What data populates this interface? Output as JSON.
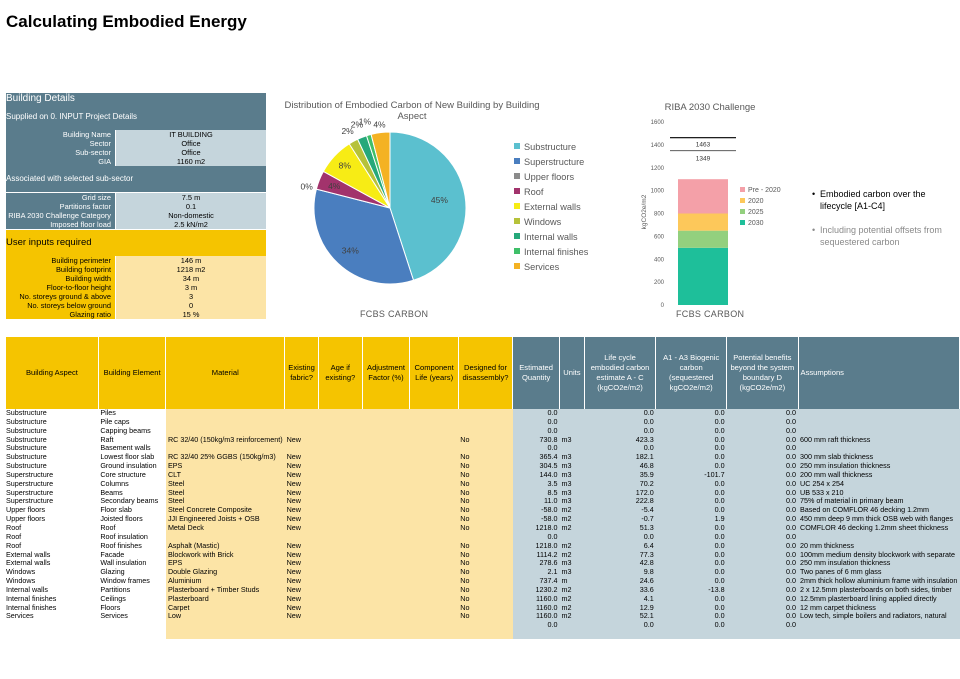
{
  "page": {
    "title": "Calculating Embodied Energy"
  },
  "building_details": {
    "header": "Building Details",
    "section1": "Supplied on 0. INPUT Project Details",
    "project_rows": [
      {
        "label": "Building Name",
        "value": "IT BUILDING"
      },
      {
        "label": "Sector",
        "value": "Office"
      },
      {
        "label": "Sub-sector",
        "value": "Office"
      },
      {
        "label": "GIA",
        "value": "1160 m2"
      }
    ],
    "section2": "Associated with selected sub-sector",
    "subsector_rows": [
      {
        "label": "Grid size",
        "value": "7.5 m"
      },
      {
        "label": "Partitions factor",
        "value": "0.1"
      },
      {
        "label": "RIBA 2030 Challenge Category",
        "value": "Non-domestic"
      },
      {
        "label": "Imposed floor load",
        "value": "2.5 kN/m2"
      }
    ],
    "section3": "User inputs required",
    "user_rows": [
      {
        "label": "Building perimeter",
        "value": "146 m"
      },
      {
        "label": "Building footprint",
        "value": "1218 m2"
      },
      {
        "label": "Building width",
        "value": "34 m"
      },
      {
        "label": "Floor-to-floor height",
        "value": "3 m"
      },
      {
        "label": "No. storeys ground & above",
        "value": "3"
      },
      {
        "label": "No. storeys below ground",
        "value": "0"
      },
      {
        "label": "Glazing ratio",
        "value": "15 %"
      }
    ]
  },
  "chart_data": [
    {
      "type": "pie",
      "title": "Distribution of Embodied Carbon of New Building by Building Aspect",
      "categories": [
        "Substructure",
        "Superstructure",
        "Upper floors",
        "Roof",
        "External walls",
        "Windows",
        "Internal walls",
        "Internal finishes",
        "Services"
      ],
      "values": [
        45,
        34,
        0,
        4,
        8,
        2,
        2,
        1,
        4
      ],
      "labels": [
        "45%",
        "34%",
        "0%",
        "4%",
        "8%",
        "2%",
        "2%",
        "1%",
        "4%"
      ],
      "colors": [
        "#5bc0cf",
        "#4a7ebf",
        "#8b8b8b",
        "#a2336c",
        "#f7ec15",
        "#b6c23a",
        "#26a87a",
        "#3fbf69",
        "#f4b223"
      ],
      "legend_position": "right",
      "brand": "FCBS CARBON"
    },
    {
      "type": "bar",
      "title": "RIBA 2030 Challenge",
      "ylabel": "kgCO2e/m2",
      "ylim": [
        0,
        1600
      ],
      "yticks": [
        0,
        200,
        400,
        600,
        800,
        1000,
        1200,
        1400,
        1600
      ],
      "stack": [
        {
          "name": "2030",
          "from": 0,
          "to": 500,
          "color": "#1ebf9a"
        },
        {
          "name": "2025",
          "from": 500,
          "to": 650,
          "color": "#93d07e"
        },
        {
          "name": "2020",
          "from": 650,
          "to": 800,
          "color": "#fdc85a"
        },
        {
          "name": "Pre - 2020",
          "from": 800,
          "to": 1100,
          "color": "#f4a0a8"
        }
      ],
      "markers": [
        {
          "value": 1463,
          "label": "1463"
        },
        {
          "value": 1349,
          "label": "1349"
        }
      ],
      "legend": [
        "Pre - 2020",
        "2020",
        "2025",
        "2030"
      ],
      "brand": "FCBS CARBON"
    }
  ],
  "notes": {
    "bullet1": "Embodied carbon over the lifecycle [A1-C4]",
    "bullet2": "Including potential offsets from sequestered carbon"
  },
  "table": {
    "headers": [
      "Building Aspect",
      "Building Element",
      "Material",
      "Existing fabric?",
      "Age if existing?",
      "Adjustment Factor (%)",
      "Component Life (years)",
      "Designed for disassembly?",
      "Estimated Quantity",
      "Units",
      "Life cycle embodied carbon estimate A - C (kgCO2e/m2)",
      "A1 - A3 Biogenic carbon (sequestered kgCO2e/m2)",
      "Potential benefits beyond the system boundary D (kgCO2e/m2)",
      "Assumptions"
    ],
    "rows": [
      [
        "Substructure",
        "Piles",
        "",
        "",
        "",
        "",
        "",
        "",
        "0.0",
        "",
        "0.0",
        "0.0",
        "0.0",
        ""
      ],
      [
        "Substructure",
        "Pile caps",
        "",
        "",
        "",
        "",
        "",
        "",
        "0.0",
        "",
        "0.0",
        "0.0",
        "0.0",
        ""
      ],
      [
        "Substructure",
        "Capping beams",
        "",
        "",
        "",
        "",
        "",
        "",
        "0.0",
        "",
        "0.0",
        "0.0",
        "0.0",
        ""
      ],
      [
        "Substructure",
        "Raft",
        "RC 32/40 (150kg/m3 reinforcement)",
        "New",
        "",
        "",
        "",
        "No",
        "730.8",
        "m3",
        "423.3",
        "0.0",
        "0.0",
        "600 mm raft thickness"
      ],
      [
        "Substructure",
        "Basement walls",
        "",
        "",
        "",
        "",
        "",
        "",
        "0.0",
        "",
        "0.0",
        "0.0",
        "0.0",
        ""
      ],
      [
        "Substructure",
        "Lowest floor slab",
        "RC 32/40 25% GGBS (150kg/m3)",
        "New",
        "",
        "",
        "",
        "No",
        "365.4",
        "m3",
        "182.1",
        "0.0",
        "0.0",
        "300 mm slab thickness"
      ],
      [
        "Substructure",
        "Ground insulation",
        "EPS",
        "New",
        "",
        "",
        "",
        "No",
        "304.5",
        "m3",
        "46.8",
        "0.0",
        "0.0",
        "250 mm insulation thickness"
      ],
      [
        "Superstructure",
        "Core structure",
        "CLT",
        "New",
        "",
        "",
        "",
        "No",
        "144.0",
        "m3",
        "35.9",
        "-101.7",
        "0.0",
        "200 mm wall thickness"
      ],
      [
        "Superstructure",
        "Columns",
        "Steel",
        "New",
        "",
        "",
        "",
        "No",
        "3.5",
        "m3",
        "70.2",
        "0.0",
        "0.0",
        "UC 254 x 254"
      ],
      [
        "Superstructure",
        "Beams",
        "Steel",
        "New",
        "",
        "",
        "",
        "No",
        "8.5",
        "m3",
        "172.0",
        "0.0",
        "0.0",
        "UB 533 x 210"
      ],
      [
        "Superstructure",
        "Secondary beams",
        "Steel",
        "New",
        "",
        "",
        "",
        "No",
        "11.0",
        "m3",
        "222.8",
        "0.0",
        "0.0",
        "75% of material in primary beam"
      ],
      [
        "Upper floors",
        "Floor slab",
        "Steel Concrete Composite",
        "New",
        "",
        "",
        "",
        "No",
        "-58.0",
        "m2",
        "-5.4",
        "0.0",
        "0.0",
        "Based on COMFLOR 46 decking 1.2mm"
      ],
      [
        "Upper floors",
        "Joisted floors",
        "JJI Engineered Joists + OSB",
        "New",
        "",
        "",
        "",
        "No",
        "-58.0",
        "m2",
        "-0.7",
        "1.9",
        "0.0",
        "450 mm deep 9 mm thick OSB web with flanges"
      ],
      [
        "Roof",
        "Roof",
        "Metal Deck",
        "New",
        "",
        "",
        "",
        "No",
        "1218.0",
        "m2",
        "51.3",
        "0.0",
        "0.0",
        "COMFLOR 46 decking 1.2mm sheet thickness"
      ],
      [
        "Roof",
        "Roof insulation",
        "",
        "",
        "",
        "",
        "",
        "",
        "0.0",
        "",
        "0.0",
        "0.0",
        "0.0",
        ""
      ],
      [
        "Roof",
        "Roof finishes",
        "Asphalt (Mastic)",
        "New",
        "",
        "",
        "",
        "No",
        "1218.0",
        "m2",
        "6.4",
        "0.0",
        "0.0",
        "20 mm thickness"
      ],
      [
        "External walls",
        "Facade",
        "Blockwork with Brick",
        "New",
        "",
        "",
        "",
        "No",
        "1114.2",
        "m2",
        "77.3",
        "0.0",
        "0.0",
        "100mm medium density blockwork with separate"
      ],
      [
        "External walls",
        "Wall insulation",
        "EPS",
        "New",
        "",
        "",
        "",
        "No",
        "278.6",
        "m3",
        "42.8",
        "0.0",
        "0.0",
        "250 mm insulation thickness"
      ],
      [
        "Windows",
        "Glazing",
        "Double Glazing",
        "New",
        "",
        "",
        "",
        "No",
        "2.1",
        "m3",
        "9.8",
        "0.0",
        "0.0",
        "Two panes of 6 mm glass"
      ],
      [
        "Windows",
        "Window frames",
        "Aluminium",
        "New",
        "",
        "",
        "",
        "No",
        "737.4",
        "m",
        "24.6",
        "0.0",
        "0.0",
        "2mm thick hollow aluminium frame with insulation"
      ],
      [
        "Internal walls",
        "Partitions",
        "Plasterboard + Timber Studs",
        "New",
        "",
        "",
        "",
        "No",
        "1230.2",
        "m2",
        "33.6",
        "-13.8",
        "0.0",
        "2 x 12.5mm plasterboards on both sides, timber"
      ],
      [
        "Internal finishes",
        "Ceilings",
        "Plasterboard",
        "New",
        "",
        "",
        "",
        "No",
        "1160.0",
        "m2",
        "4.1",
        "0.0",
        "0.0",
        "12.5mm plasterboard lining applied directly"
      ],
      [
        "Internal finishes",
        "Floors",
        "Carpet",
        "New",
        "",
        "",
        "",
        "No",
        "1160.0",
        "m2",
        "12.9",
        "0.0",
        "0.0",
        "12 mm carpet thickness"
      ],
      [
        "Services",
        "Services",
        "Low",
        "New",
        "",
        "",
        "",
        "No",
        "1160.0",
        "m2",
        "52.1",
        "0.0",
        "0.0",
        "Low tech, simple boilers and radiators, natural"
      ],
      [
        "",
        "",
        "",
        "",
        "",
        "",
        "",
        "",
        "0.0",
        "",
        "0.0",
        "0.0",
        "0.0",
        ""
      ],
      [
        "",
        "",
        "",
        "",
        "",
        "",
        "",
        "",
        "",
        "",
        "",
        "",
        "",
        ""
      ]
    ]
  }
}
